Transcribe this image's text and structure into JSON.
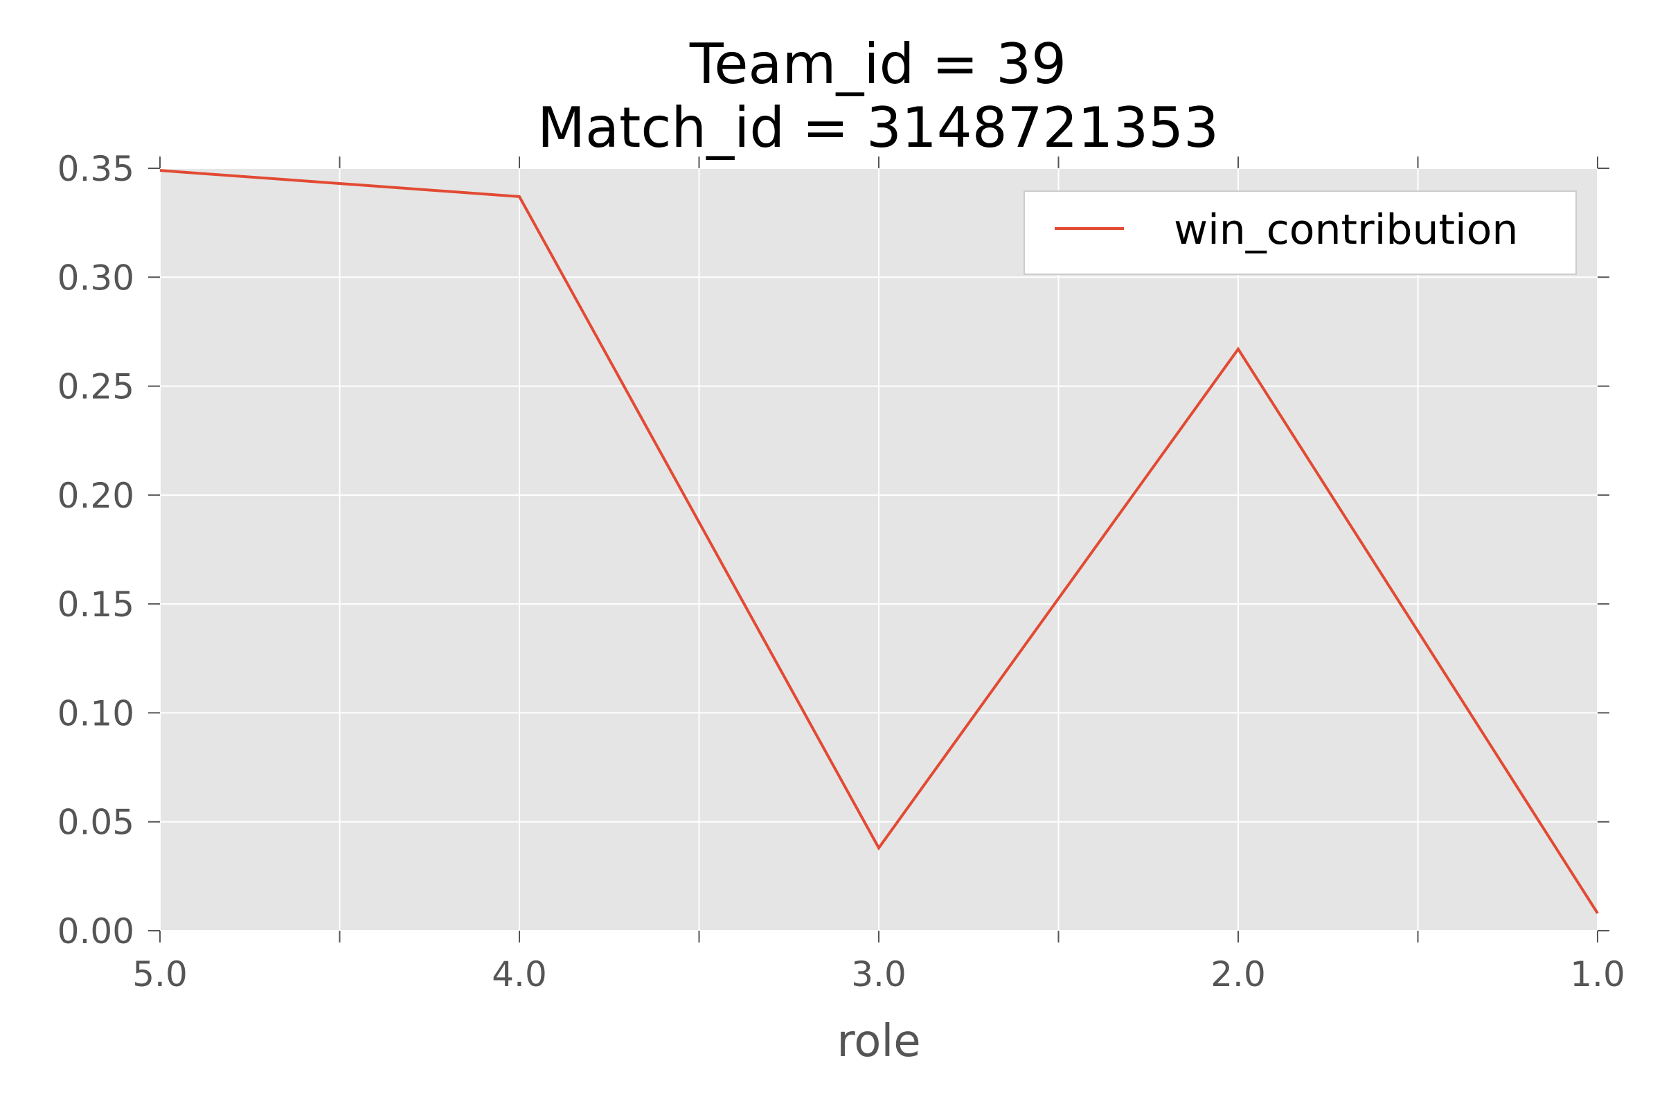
{
  "chart_data": {
    "type": "line",
    "title_lines": [
      "Team_id = 39",
      "Match_id = 3148721353"
    ],
    "xlabel": "role",
    "ylabel": "",
    "x_inverted": true,
    "xlim": [
      5.0,
      1.0
    ],
    "ylim": [
      0.0,
      0.35
    ],
    "x_ticks": [
      5.0,
      4.0,
      3.0,
      2.0,
      1.0
    ],
    "x_tick_labels": [
      "5.0",
      "4.0",
      "3.0",
      "2.0",
      "1.0"
    ],
    "x_minor_ticks": [
      4.5,
      3.5,
      2.5,
      1.5
    ],
    "y_ticks": [
      0.0,
      0.05,
      0.1,
      0.15,
      0.2,
      0.25,
      0.3,
      0.35
    ],
    "y_tick_labels": [
      "0.00",
      "0.05",
      "0.10",
      "0.15",
      "0.20",
      "0.25",
      "0.30",
      "0.35"
    ],
    "grid": true,
    "legend_position": "upper right",
    "series": [
      {
        "name": "win_contribution",
        "color": "#E24A33",
        "x": [
          5.0,
          4.0,
          3.0,
          2.0,
          1.0
        ],
        "y": [
          0.349,
          0.337,
          0.038,
          0.267,
          0.008
        ]
      }
    ]
  },
  "colors": {
    "plot_background": "#E5E5E5",
    "grid": "#FFFFFF",
    "tick_mark": "#555555",
    "line": "#E24A33"
  }
}
